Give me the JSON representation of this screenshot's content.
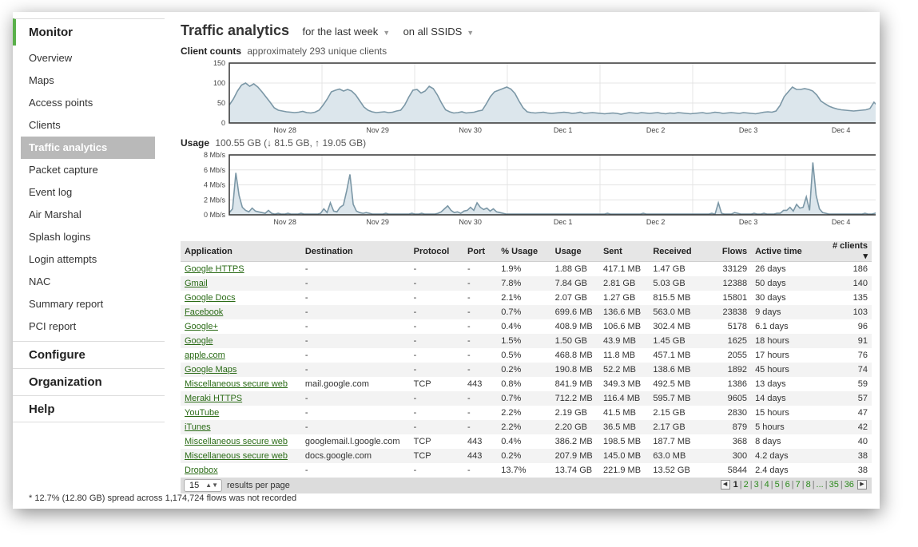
{
  "sidebar": {
    "monitor_label": "Monitor",
    "items": [
      {
        "label": "Overview"
      },
      {
        "label": "Maps"
      },
      {
        "label": "Access points"
      },
      {
        "label": "Clients"
      },
      {
        "label": "Traffic analytics",
        "active": true
      },
      {
        "label": "Packet capture"
      },
      {
        "label": "Event log"
      },
      {
        "label": "Air Marshal"
      },
      {
        "label": "Splash logins"
      },
      {
        "label": "Login attempts"
      },
      {
        "label": "NAC"
      },
      {
        "label": "Summary report"
      },
      {
        "label": "PCI report"
      }
    ],
    "configure_label": "Configure",
    "organization_label": "Organization",
    "help_label": "Help"
  },
  "header": {
    "title": "Traffic analytics",
    "timespan": "for the last week",
    "ssid_filter": "on all SSIDS"
  },
  "client_counts": {
    "label": "Client counts",
    "description": "approximately 293 unique clients"
  },
  "usage": {
    "label": "Usage",
    "description": "100.55 GB (↓ 81.5 GB, ↑ 19.05 GB)"
  },
  "chart_data": [
    {
      "type": "area",
      "title": "Client counts",
      "x_ticks": [
        "Nov 28",
        "Nov 29",
        "Nov 30",
        "Dec 1",
        "Dec 2",
        "Dec 3",
        "Dec 4"
      ],
      "y_ticks": [
        "150",
        "100",
        "50",
        "0"
      ],
      "ylim": [
        0,
        150
      ],
      "series": [
        {
          "values": [
            45,
            60,
            80,
            95,
            100,
            92,
            98,
            90,
            78,
            65,
            52,
            38,
            32,
            30,
            28,
            27,
            26,
            27,
            29,
            26,
            25,
            27,
            32,
            45,
            60,
            78,
            82,
            85,
            80,
            84,
            80,
            70,
            55,
            40,
            32,
            28,
            26,
            27,
            28,
            26,
            27,
            30,
            32,
            45,
            65,
            82,
            84,
            75,
            80,
            92,
            86,
            70,
            50,
            33,
            28,
            25,
            26,
            28,
            25,
            26,
            27,
            30,
            32,
            48,
            66,
            78,
            82,
            86,
            90,
            85,
            74,
            55,
            38,
            28,
            26,
            25,
            26,
            27,
            25,
            24,
            25,
            26,
            27,
            26,
            24,
            25,
            27,
            24,
            25,
            26,
            25,
            24,
            23,
            24,
            25,
            24,
            22,
            24,
            26,
            25,
            24,
            26,
            25,
            24,
            25,
            26,
            24,
            23,
            25,
            24,
            26,
            25,
            24,
            23,
            24,
            25,
            26,
            24,
            25,
            27,
            26,
            24,
            25,
            26,
            25,
            24,
            26,
            25,
            24,
            23,
            25,
            27,
            28,
            27,
            30,
            44,
            66,
            78,
            90,
            84,
            84,
            86,
            84,
            80,
            70,
            55,
            48,
            42,
            38,
            35,
            33,
            32,
            31,
            30,
            31,
            32,
            33,
            36,
            52,
            42
          ]
        }
      ]
    },
    {
      "type": "area",
      "title": "Usage",
      "x_ticks": [
        "Nov 28",
        "Nov 29",
        "Nov 30",
        "Dec 1",
        "Dec 2",
        "Dec 3",
        "Dec 4"
      ],
      "y_ticks": [
        "8 Mb/s",
        "6 Mb/s",
        "4 Mb/s",
        "2 Mb/s",
        "0 Mb/s"
      ],
      "ylim": [
        0,
        8
      ],
      "series": [
        {
          "values": [
            0.3,
            0.8,
            5.6,
            2.6,
            1.0,
            0.6,
            0.4,
            0.9,
            0.5,
            0.4,
            0.3,
            0.2,
            0.6,
            0.2,
            0.1,
            0.2,
            0.1,
            0.1,
            0.2,
            0.1,
            0.1,
            0.1,
            0.2,
            0.1,
            0.1,
            0.1,
            0.1,
            0.1,
            0.2,
            0.8,
            0.3,
            1.6,
            0.5,
            0.4,
            1.0,
            1.3,
            3.2,
            5.4,
            1.4,
            0.5,
            0.3,
            0.2,
            0.3,
            0.2,
            0.1,
            0.1,
            0.1,
            0.1,
            0.2,
            0.1,
            0.1,
            0.1,
            0.1,
            0.1,
            0.1,
            0.1,
            0.2,
            0.1,
            0.1,
            0.2,
            0.1,
            0.1,
            0.1,
            0.1,
            0.2,
            0.4,
            0.8,
            1.2,
            0.6,
            0.3,
            0.4,
            0.2,
            0.5,
            0.6,
            1.0,
            0.6,
            1.6,
            1.0,
            0.7,
            0.9,
            0.5,
            0.8,
            0.4,
            0.3,
            0.2,
            0.1,
            0.1,
            0.1,
            0.1,
            0.1,
            0.1,
            0.1,
            0.1,
            0.1,
            0.1,
            0.1,
            0.1,
            0.1,
            0.1,
            0.1,
            0.1,
            0.1,
            0.1,
            0.1,
            0.1,
            0.1,
            0.1,
            0.1,
            0.1,
            0.1,
            0.1,
            0.1,
            0.1,
            0.1,
            0.1,
            0.1,
            0.2,
            0.1,
            0.1,
            0.1,
            0.1,
            0.1,
            0.1,
            0.1,
            0.1,
            0.1,
            0.1,
            0.2,
            0.1,
            0.1,
            0.1,
            0.1,
            0.1,
            0.1,
            0.1,
            0.1,
            0.1,
            0.1,
            0.1,
            0.1,
            0.1,
            0.1,
            0.1,
            0.1,
            0.1,
            0.1,
            0.1,
            0.1,
            0.2,
            0.1,
            1.6,
            0.2,
            0.1,
            0.1,
            0.1,
            0.3,
            0.2,
            0.1,
            0.1,
            0.1,
            0.1,
            0.2,
            0.1,
            0.1,
            0.2,
            0.1,
            0.1,
            0.1,
            0.2,
            0.2,
            0.6,
            0.6,
            1.0,
            0.5,
            1.4,
            0.9,
            1.0,
            2.4,
            0.6,
            7.0,
            2.6,
            0.8,
            0.3,
            0.2,
            0.1,
            0.1,
            0.1,
            0.1,
            0.1,
            0.1,
            0.1,
            0.1,
            0.1,
            0.1,
            0.1,
            0.2,
            0.1,
            0.1,
            0.2,
            0.3
          ]
        }
      ]
    }
  ],
  "table": {
    "headers": [
      "Application",
      "Destination",
      "Protocol",
      "Port",
      "% Usage",
      "Usage",
      "Sent",
      "Received",
      "Flows",
      "Active time",
      "# clients ▾"
    ],
    "rows": [
      [
        "Google HTTPS",
        "-",
        "-",
        "-",
        "1.9%",
        "1.88 GB",
        "417.1 MB",
        "1.47 GB",
        "33129",
        "26 days",
        "186"
      ],
      [
        "Gmail",
        "-",
        "-",
        "-",
        "7.8%",
        "7.84 GB",
        "2.81 GB",
        "5.03 GB",
        "12388",
        "50 days",
        "140"
      ],
      [
        "Google Docs",
        "-",
        "-",
        "-",
        "2.1%",
        "2.07 GB",
        "1.27 GB",
        "815.5 MB",
        "15801",
        "30 days",
        "135"
      ],
      [
        "Facebook",
        "-",
        "-",
        "-",
        "0.7%",
        "699.6 MB",
        "136.6 MB",
        "563.0 MB",
        "23838",
        "9 days",
        "103"
      ],
      [
        "Google+",
        "-",
        "-",
        "-",
        "0.4%",
        "408.9 MB",
        "106.6 MB",
        "302.4 MB",
        "5178",
        "6.1 days",
        "96"
      ],
      [
        "Google",
        "-",
        "-",
        "-",
        "1.5%",
        "1.50 GB",
        "43.9 MB",
        "1.45 GB",
        "1625",
        "18 hours",
        "91"
      ],
      [
        "apple.com",
        "-",
        "-",
        "-",
        "0.5%",
        "468.8 MB",
        "11.8 MB",
        "457.1 MB",
        "2055",
        "17 hours",
        "76"
      ],
      [
        "Google Maps",
        "-",
        "-",
        "-",
        "0.2%",
        "190.8 MB",
        "52.2 MB",
        "138.6 MB",
        "1892",
        "45 hours",
        "74"
      ],
      [
        "Miscellaneous secure web",
        "mail.google.com",
        "TCP",
        "443",
        "0.8%",
        "841.9 MB",
        "349.3 MB",
        "492.5 MB",
        "1386",
        "13 days",
        "59"
      ],
      [
        "Meraki HTTPS",
        "-",
        "-",
        "-",
        "0.7%",
        "712.2 MB",
        "116.4 MB",
        "595.7 MB",
        "9605",
        "14 days",
        "57"
      ],
      [
        "YouTube",
        "-",
        "-",
        "-",
        "2.2%",
        "2.19 GB",
        "41.5 MB",
        "2.15 GB",
        "2830",
        "15 hours",
        "47"
      ],
      [
        "iTunes",
        "-",
        "-",
        "-",
        "2.2%",
        "2.20 GB",
        "36.5 MB",
        "2.17 GB",
        "879",
        "5 hours",
        "42"
      ],
      [
        "Miscellaneous secure web",
        "googlemail.l.google.com",
        "TCP",
        "443",
        "0.4%",
        "386.2 MB",
        "198.5 MB",
        "187.7 MB",
        "368",
        "8 days",
        "40"
      ],
      [
        "Miscellaneous secure web",
        "docs.google.com",
        "TCP",
        "443",
        "0.2%",
        "207.9 MB",
        "145.0 MB",
        "63.0 MB",
        "300",
        "4.2 days",
        "38"
      ],
      [
        "Dropbox",
        "-",
        "-",
        "-",
        "13.7%",
        "13.74 GB",
        "221.9 MB",
        "13.52 GB",
        "5844",
        "2.4 days",
        "38"
      ]
    ]
  },
  "pager": {
    "per_page_value": "15",
    "per_page_label": "results per page",
    "pages": [
      "1",
      "2",
      "3",
      "4",
      "5",
      "6",
      "7",
      "8",
      "...",
      "35",
      "36"
    ],
    "current": "1"
  },
  "footnote": "* 12.7% (12.80 GB) spread across 1,174,724 flows was not recorded",
  "colors": {
    "area_fill": "#dce6ec",
    "area_line": "#7b97a6",
    "link": "#2a6b16",
    "accent": "#5ab04a"
  }
}
